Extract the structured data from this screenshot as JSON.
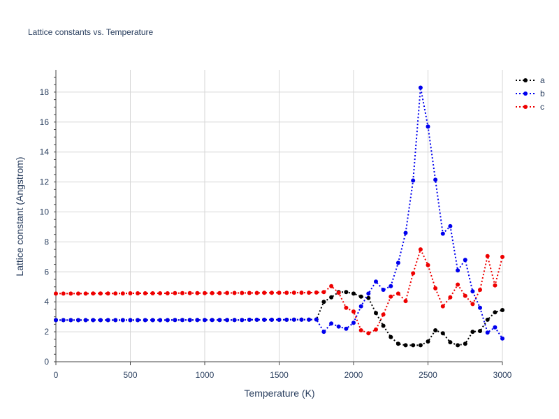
{
  "chart_data": {
    "type": "line",
    "title": "Lattice constants vs. Temperature",
    "xlabel": "Temperature (K)",
    "ylabel": "Lattice constant (Angstrom)",
    "xlim": [
      0,
      3000
    ],
    "ylim": [
      0,
      19
    ],
    "xticks": [
      0,
      500,
      1000,
      1500,
      2000,
      2500,
      3000
    ],
    "yticks": [
      0,
      2,
      4,
      6,
      8,
      10,
      12,
      14,
      16,
      18
    ],
    "grid": true,
    "legend_position": "top-right",
    "line_style": "dotted",
    "x": [
      0,
      50,
      100,
      150,
      200,
      250,
      300,
      350,
      400,
      450,
      500,
      550,
      600,
      650,
      700,
      750,
      800,
      850,
      900,
      950,
      1000,
      1050,
      1100,
      1150,
      1200,
      1250,
      1300,
      1350,
      1400,
      1450,
      1500,
      1550,
      1600,
      1650,
      1700,
      1750,
      1800,
      1850,
      1900,
      1950,
      2000,
      2050,
      2100,
      2150,
      2200,
      2250,
      2300,
      2350,
      2400,
      2450,
      2500,
      2550,
      2600,
      2650,
      2700,
      2750,
      2800,
      2850,
      2900,
      2950,
      3000
    ],
    "series": [
      {
        "name": "a",
        "color": "#000000",
        "values": [
          2.78,
          2.78,
          2.78,
          2.78,
          2.78,
          2.78,
          2.78,
          2.78,
          2.78,
          2.78,
          2.78,
          2.78,
          2.78,
          2.78,
          2.78,
          2.78,
          2.79,
          2.79,
          2.79,
          2.79,
          2.79,
          2.79,
          2.79,
          2.79,
          2.79,
          2.79,
          2.8,
          2.8,
          2.8,
          2.8,
          2.8,
          2.8,
          2.81,
          2.81,
          2.81,
          2.82,
          4.0,
          4.3,
          4.65,
          4.65,
          4.55,
          4.35,
          4.25,
          3.25,
          2.4,
          1.65,
          1.2,
          1.1,
          1.1,
          1.1,
          1.35,
          2.1,
          1.9,
          1.3,
          1.1,
          1.2,
          2.0,
          2.05,
          2.8,
          3.3,
          3.45
        ]
      },
      {
        "name": "b",
        "color": "#0000ee",
        "values": [
          2.78,
          2.78,
          2.78,
          2.78,
          2.78,
          2.78,
          2.78,
          2.78,
          2.78,
          2.78,
          2.78,
          2.78,
          2.78,
          2.78,
          2.78,
          2.78,
          2.79,
          2.79,
          2.79,
          2.79,
          2.79,
          2.79,
          2.79,
          2.79,
          2.79,
          2.79,
          2.8,
          2.8,
          2.8,
          2.8,
          2.8,
          2.8,
          2.81,
          2.81,
          2.81,
          2.82,
          2.0,
          2.55,
          2.35,
          2.2,
          2.6,
          3.7,
          4.55,
          5.35,
          4.8,
          5.05,
          6.6,
          8.6,
          12.1,
          18.3,
          15.7,
          12.15,
          8.55,
          9.05,
          6.1,
          6.8,
          4.7,
          3.6,
          1.95,
          2.3,
          1.55
        ]
      },
      {
        "name": "c",
        "color": "#ee0000",
        "values": [
          4.55,
          4.55,
          4.55,
          4.55,
          4.55,
          4.56,
          4.56,
          4.56,
          4.56,
          4.56,
          4.57,
          4.57,
          4.57,
          4.57,
          4.57,
          4.57,
          4.58,
          4.58,
          4.58,
          4.58,
          4.58,
          4.58,
          4.58,
          4.59,
          4.59,
          4.59,
          4.59,
          4.59,
          4.6,
          4.6,
          4.6,
          4.6,
          4.61,
          4.61,
          4.61,
          4.62,
          4.65,
          5.05,
          4.6,
          3.6,
          3.35,
          2.1,
          1.9,
          2.15,
          3.15,
          4.35,
          4.55,
          4.05,
          5.9,
          7.5,
          6.45,
          4.9,
          3.7,
          4.3,
          5.15,
          4.4,
          3.85,
          4.8,
          7.05,
          5.1,
          7.0
        ]
      }
    ]
  }
}
